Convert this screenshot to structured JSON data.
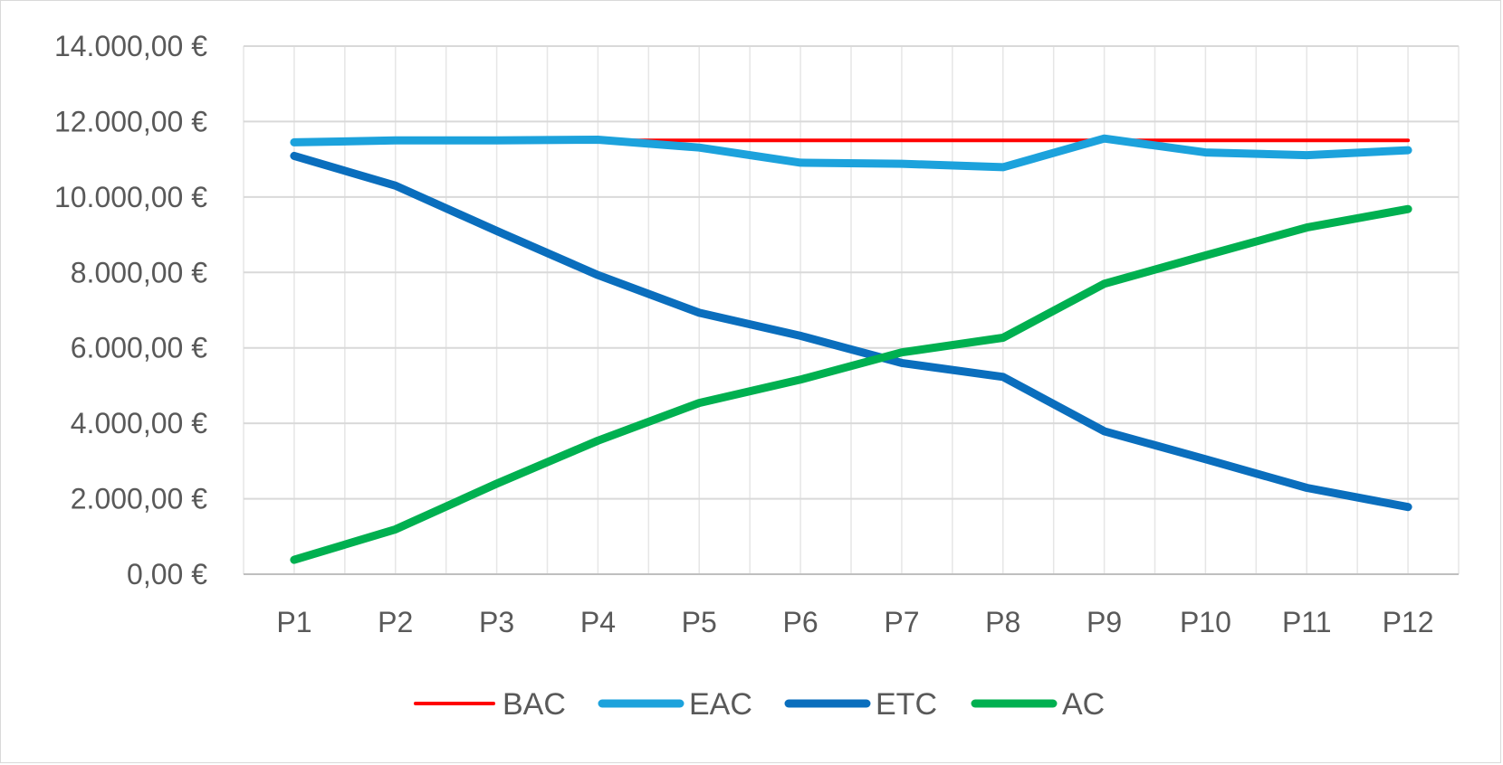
{
  "chart_data": {
    "type": "line",
    "title": "",
    "xlabel": "",
    "ylabel": "",
    "categories": [
      "P1",
      "P2",
      "P3",
      "P4",
      "P5",
      "P6",
      "P7",
      "P8",
      "P9",
      "P10",
      "P11",
      "P12"
    ],
    "ylim": [
      0,
      14000
    ],
    "y_ticks": [
      0,
      2000,
      4000,
      6000,
      8000,
      10000,
      12000,
      14000
    ],
    "y_tick_labels": [
      "0,00 €",
      "2.000,00 €",
      "4.000,00 €",
      "6.000,00 €",
      "8.000,00 €",
      "10.000,00 €",
      "12.000,00 €",
      "14.000,00 €"
    ],
    "grid": true,
    "legend_position": "bottom",
    "series": [
      {
        "name": "BAC",
        "color": "#ff0000",
        "values": [
          11500,
          11500,
          11500,
          11500,
          11500,
          11500,
          11500,
          11500,
          11500,
          11500,
          11500,
          11500
        ]
      },
      {
        "name": "EAC",
        "color": "#1ca2dc",
        "values": [
          11450,
          11500,
          11500,
          11520,
          11310,
          10910,
          10880,
          10790,
          11550,
          11180,
          11110,
          11240
        ]
      },
      {
        "name": "ETC",
        "color": "#0a6ebd",
        "values": [
          11090,
          10300,
          9100,
          7930,
          6930,
          6320,
          5600,
          5230,
          3790,
          3050,
          2290,
          1780
        ]
      },
      {
        "name": "AC",
        "color": "#00b050",
        "values": [
          380,
          1190,
          2400,
          3540,
          4540,
          5160,
          5880,
          6270,
          7700,
          8450,
          9190,
          9680
        ]
      }
    ]
  }
}
